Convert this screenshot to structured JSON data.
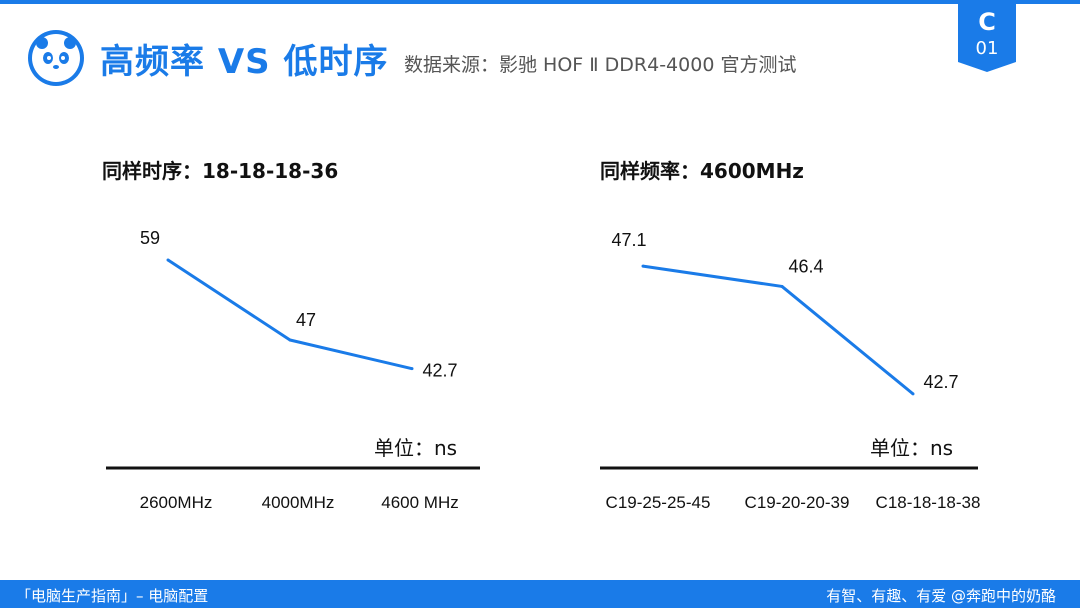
{
  "header": {
    "title": "高频率 VS 低时序",
    "subtitle": "数据来源：影驰 HOF Ⅱ DDR4-4000 官方测试",
    "badge_letter": "C",
    "badge_number": "01"
  },
  "colors": {
    "accent": "#1a7be8",
    "line": "#1a7be8",
    "axis": "#111111"
  },
  "chart_data": [
    {
      "type": "line",
      "title": "同样时序：18-18-18-36",
      "unit_label": "单位：ns",
      "categories": [
        "2600MHz",
        "4000MHz",
        "4600 MHz"
      ],
      "series": [
        {
          "name": "latency",
          "values": [
            59,
            47,
            42.7
          ]
        }
      ],
      "value_labels": [
        "59",
        "47",
        "42.7"
      ],
      "ylim": [
        38,
        62
      ]
    },
    {
      "type": "line",
      "title": "同样频率：4600MHz",
      "unit_label": "单位：ns",
      "categories": [
        "C19-25-25-45",
        "C19-20-20-39",
        "C18-18-18-38"
      ],
      "series": [
        {
          "name": "latency",
          "values": [
            47.1,
            46.4,
            42.7
          ]
        }
      ],
      "value_labels": [
        "47.1",
        "46.4",
        "42.7"
      ],
      "ylim": [
        41.8,
        48.0
      ]
    }
  ],
  "footer": {
    "left": "「电脑生产指南」– 电脑配置",
    "right": "有智、有趣、有爱 @奔跑中的奶酪"
  }
}
